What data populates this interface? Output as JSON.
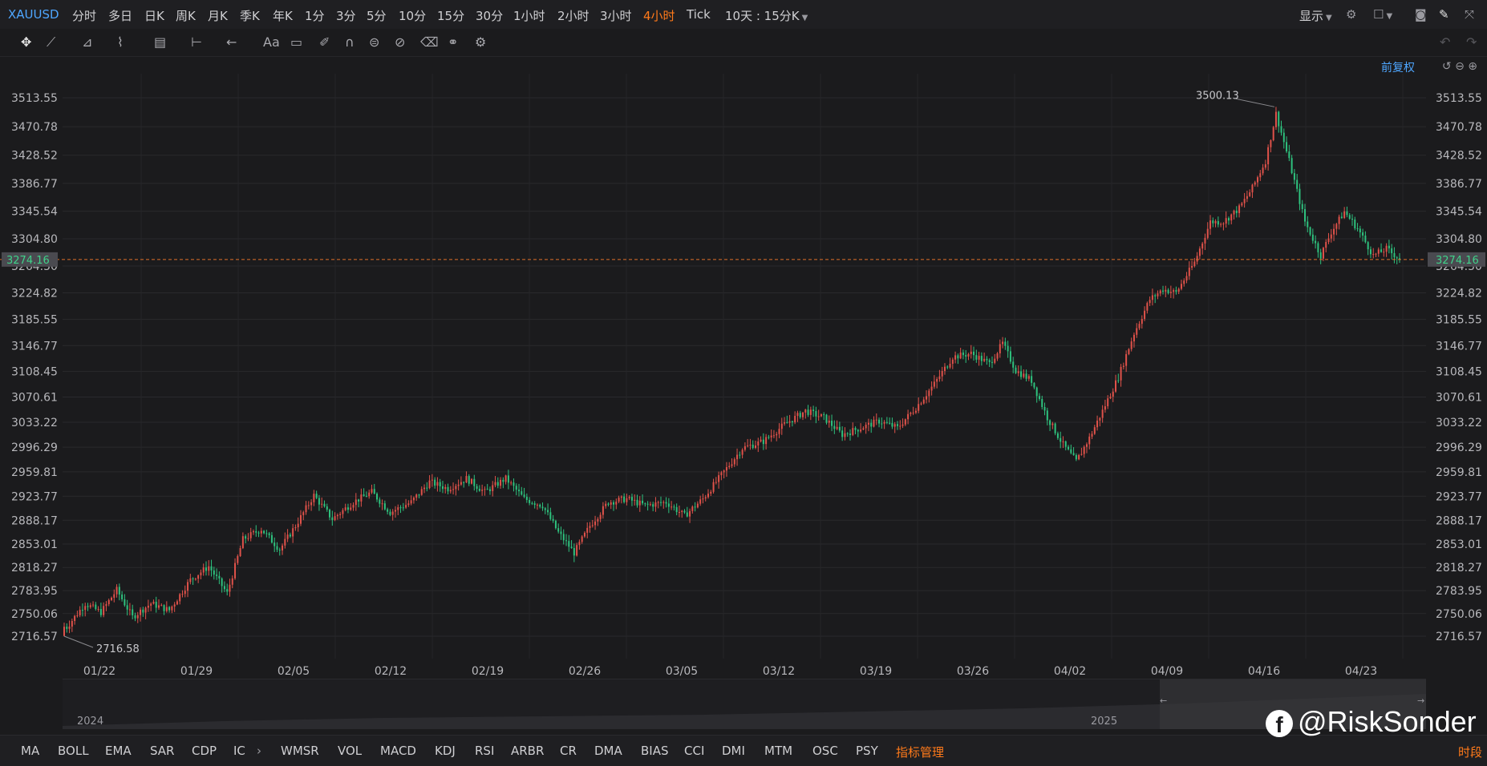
{
  "topbar": {
    "symbol": "XAUUSD",
    "periods": [
      "分时",
      "多日",
      "日K",
      "周K",
      "月K",
      "季K",
      "年K",
      "1分",
      "3分",
      "5分",
      "10分",
      "15分",
      "30分",
      "1小时",
      "2小时",
      "3小时",
      "4小时",
      "Tick"
    ],
    "active_period": "4小时",
    "range_label": "10天 : 15分K",
    "display_label": "显示"
  },
  "chart_header": {
    "adjust_label": "前复权"
  },
  "bottombar": {
    "indicators_left": [
      "MA",
      "BOLL",
      "EMA",
      "SAR",
      "CDP",
      "IC"
    ],
    "indicators_right": [
      "WMSR",
      "VOL",
      "MACD",
      "KDJ",
      "RSI",
      "ARBR",
      "CR",
      "DMA",
      "BIAS",
      "CCI",
      "DMI",
      "MTM",
      "OSC",
      "PSY"
    ],
    "manage_label": "指标管理",
    "right_label": "时段"
  },
  "navigator": {
    "year_left": "2024",
    "year_right": "2025"
  },
  "watermark": {
    "text": "@RiskSonder",
    "icon": "facebook-icon"
  },
  "colors": {
    "up": "#e0524a",
    "down": "#2ec27e",
    "accent": "#ff7a1a",
    "link": "#4ea6ff",
    "last_price_line": "#e0702a"
  },
  "chart_data": {
    "type": "candlestick",
    "y_ticks": [
      3513.55,
      3470.78,
      3428.52,
      3386.77,
      3345.54,
      3304.8,
      3264.5,
      3224.82,
      3185.55,
      3146.77,
      3108.45,
      3070.61,
      3033.22,
      2996.29,
      2959.81,
      2923.77,
      2888.17,
      2853.01,
      2818.27,
      2783.95,
      2750.06,
      2716.57
    ],
    "y_tick_labels": [
      "3513.55",
      "3470.78",
      "3428.52",
      "3386.77",
      "3345.54",
      "3304.80",
      "3264.50",
      "3224.82",
      "3185.55",
      "3146.77",
      "3108.45",
      "3070.61",
      "3033.22",
      "2996.29",
      "2959.81",
      "2923.77",
      "2888.17",
      "2853.01",
      "2818.27",
      "2783.95",
      "2750.06",
      "2716.57"
    ],
    "x_labels": [
      "01/22",
      "01/29",
      "02/05",
      "02/12",
      "02/19",
      "02/26",
      "03/05",
      "03/12",
      "03/19",
      "03/26",
      "04/02",
      "04/09",
      "04/16",
      "04/23"
    ],
    "last_price": "3274.16",
    "last_value": 3274.16,
    "high_label": "3500.13",
    "high_value": 3500.13,
    "low_label": "2716.58",
    "low_value": 2716.58,
    "anchors": [
      [
        0,
        2725
      ],
      [
        8,
        2765
      ],
      [
        14,
        2752
      ],
      [
        20,
        2785
      ],
      [
        26,
        2745
      ],
      [
        33,
        2765
      ],
      [
        40,
        2755
      ],
      [
        48,
        2800
      ],
      [
        55,
        2820
      ],
      [
        62,
        2780
      ],
      [
        68,
        2860
      ],
      [
        75,
        2875
      ],
      [
        82,
        2845
      ],
      [
        88,
        2880
      ],
      [
        95,
        2925
      ],
      [
        102,
        2890
      ],
      [
        110,
        2915
      ],
      [
        117,
        2930
      ],
      [
        124,
        2900
      ],
      [
        132,
        2915
      ],
      [
        139,
        2945
      ],
      [
        146,
        2935
      ],
      [
        153,
        2950
      ],
      [
        160,
        2930
      ],
      [
        168,
        2950
      ],
      [
        175,
        2920
      ],
      [
        182,
        2910
      ],
      [
        188,
        2870
      ],
      [
        194,
        2840
      ],
      [
        200,
        2880
      ],
      [
        207,
        2915
      ],
      [
        214,
        2920
      ],
      [
        221,
        2910
      ],
      [
        229,
        2915
      ],
      [
        236,
        2895
      ],
      [
        243,
        2920
      ],
      [
        250,
        2955
      ],
      [
        258,
        2995
      ],
      [
        266,
        3005
      ],
      [
        274,
        3030
      ],
      [
        282,
        3050
      ],
      [
        289,
        3040
      ],
      [
        296,
        3015
      ],
      [
        303,
        3025
      ],
      [
        310,
        3035
      ],
      [
        317,
        3025
      ],
      [
        324,
        3055
      ],
      [
        331,
        3090
      ],
      [
        338,
        3130
      ],
      [
        345,
        3135
      ],
      [
        352,
        3120
      ],
      [
        357,
        3150
      ],
      [
        362,
        3110
      ],
      [
        368,
        3095
      ],
      [
        374,
        3040
      ],
      [
        380,
        3000
      ],
      [
        385,
        2975
      ],
      [
        390,
        3010
      ],
      [
        395,
        3050
      ],
      [
        401,
        3100
      ],
      [
        407,
        3165
      ],
      [
        413,
        3215
      ],
      [
        418,
        3230
      ],
      [
        423,
        3225
      ],
      [
        430,
        3270
      ],
      [
        436,
        3330
      ],
      [
        441,
        3330
      ],
      [
        447,
        3350
      ],
      [
        452,
        3380
      ],
      [
        457,
        3420
      ],
      [
        461,
        3490
      ],
      [
        466,
        3420
      ],
      [
        472,
        3330
      ],
      [
        478,
        3280
      ],
      [
        482,
        3315
      ],
      [
        487,
        3345
      ],
      [
        492,
        3320
      ],
      [
        498,
        3280
      ],
      [
        503,
        3290
      ],
      [
        508,
        3275
      ]
    ]
  }
}
